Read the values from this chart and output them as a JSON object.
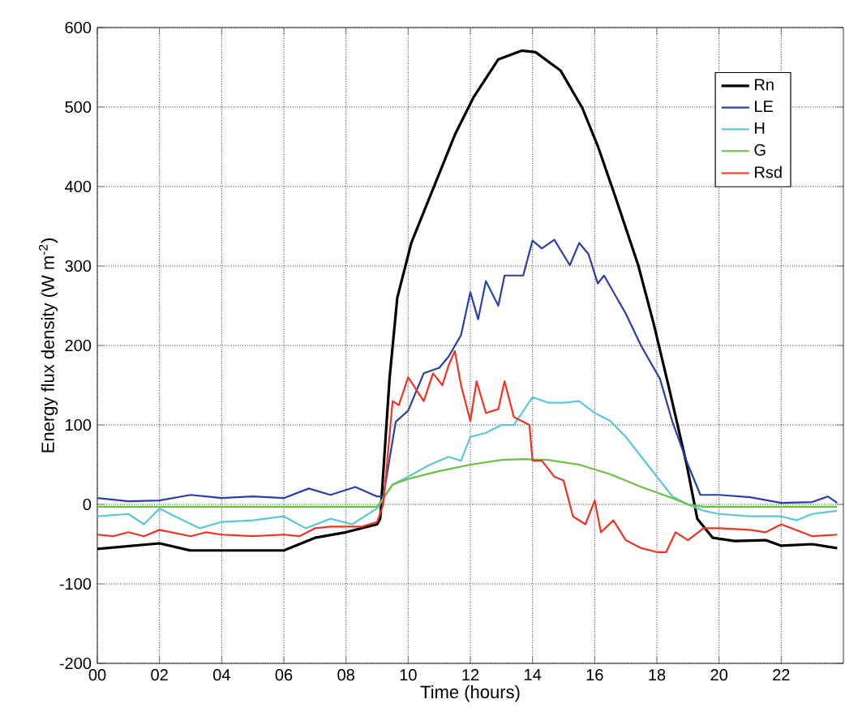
{
  "chart_data": {
    "type": "line",
    "xlabel": "Time (hours)",
    "ylabel": "Energy flux density (W m$^{-2}$)",
    "xlim": [
      0,
      24
    ],
    "ylim": [
      -200,
      600
    ],
    "xticks": [
      {
        "value": 0,
        "label": "00"
      },
      {
        "value": 2,
        "label": "02"
      },
      {
        "value": 4,
        "label": "04"
      },
      {
        "value": 6,
        "label": "06"
      },
      {
        "value": 8,
        "label": "08"
      },
      10,
      12,
      14,
      16,
      18,
      20,
      22
    ],
    "yticks": [
      -200,
      -100,
      0,
      100,
      200,
      300,
      400,
      500,
      600
    ],
    "grid": true,
    "legend": "top right",
    "line_style": "solid",
    "marker": "none",
    "series": [
      {
        "name": "Rn",
        "color": "#000000",
        "x": [
          0,
          2,
          3,
          6,
          7,
          8,
          9,
          9.1,
          9.4,
          9.65,
          10.1,
          10.8,
          11.5,
          12.1,
          12.9,
          13.65,
          14.1,
          14.9,
          15.6,
          16.1,
          16.7,
          17.4,
          17.9,
          18.4,
          18.96,
          19.3,
          19.8,
          20.5,
          21.5,
          22,
          23,
          23.8
        ],
        "values": [
          -56,
          -49,
          -58,
          -58,
          -42,
          -35,
          -25,
          -18,
          158,
          260,
          329,
          397,
          465,
          512,
          560,
          571,
          569,
          546,
          499,
          451,
          383,
          301,
          227,
          145,
          50,
          -18,
          -42,
          -46,
          -45,
          -52,
          -50,
          -55
        ]
      },
      {
        "name": "LE",
        "color": "#2b3fa8",
        "x": [
          0,
          1,
          2,
          3,
          4,
          5,
          6,
          6.8,
          7.5,
          8.3,
          9,
          9.2,
          9.6,
          10,
          10.5,
          11,
          11.3,
          11.7,
          12,
          12.25,
          12.5,
          12.9,
          13.1,
          13.7,
          14,
          14.3,
          14.7,
          15.2,
          15.5,
          15.8,
          16.1,
          16.3,
          17,
          17.5,
          18.1,
          18.5,
          19,
          19.4,
          20,
          21,
          22,
          23,
          23.5,
          23.8
        ],
        "values": [
          8,
          4,
          5,
          12,
          8,
          10,
          8,
          20,
          12,
          22,
          10,
          10,
          104,
          118,
          165,
          172,
          186,
          213,
          267,
          233,
          281,
          250,
          288,
          288,
          332,
          322,
          333,
          301,
          329,
          315,
          278,
          288,
          240,
          199,
          158,
          104,
          50,
          12,
          12,
          9,
          2,
          3,
          10,
          2
        ]
      },
      {
        "name": "H",
        "color": "#5bc8d8",
        "x": [
          0,
          1,
          1.5,
          2,
          2.5,
          3.3,
          4,
          5,
          6,
          6.7,
          7.5,
          8.2,
          9,
          9.5,
          10,
          10.7,
          11.3,
          11.7,
          12,
          12.5,
          13,
          13.4,
          14,
          14.5,
          15,
          15.5,
          16,
          16.5,
          17,
          17.5,
          18,
          18.5,
          19,
          19.5,
          20,
          21,
          22,
          22.5,
          23,
          23.8
        ],
        "values": [
          -15,
          -12,
          -25,
          -5,
          -15,
          -30,
          -22,
          -20,
          -15,
          -30,
          -18,
          -25,
          -5,
          25,
          35,
          50,
          60,
          55,
          85,
          90,
          100,
          100,
          135,
          128,
          128,
          130,
          115,
          105,
          85,
          60,
          35,
          10,
          0,
          -8,
          -12,
          -15,
          -15,
          -20,
          -12,
          -8
        ]
      },
      {
        "name": "G",
        "color": "#6cc040",
        "x": [
          0,
          9,
          9.5,
          10,
          11,
          12,
          13,
          13.7,
          14.5,
          15.5,
          16.5,
          17.5,
          18.5,
          19,
          19.5,
          23.8
        ],
        "values": [
          -3,
          -3,
          25,
          32,
          42,
          50,
          56,
          57,
          56,
          50,
          38,
          22,
          8,
          0,
          -3,
          -3
        ]
      },
      {
        "name": "Rsd",
        "color": "#ee3524",
        "x": [
          0,
          0.5,
          1,
          1.5,
          2,
          3,
          3.5,
          4,
          5,
          6,
          6.5,
          7,
          7.5,
          8.5,
          9,
          9.2,
          9.5,
          9.7,
          10,
          10.5,
          10.8,
          11.1,
          11.3,
          11.5,
          11.7,
          12,
          12.2,
          12.5,
          12.9,
          13.1,
          13.4,
          13.9,
          14,
          14.3,
          14.7,
          15,
          15.3,
          15.7,
          16,
          16.2,
          16.6,
          17,
          17.5,
          18,
          18.3,
          18.6,
          19,
          19.5,
          20,
          21,
          21.5,
          22,
          23,
          23.8
        ],
        "values": [
          -38,
          -40,
          -35,
          -40,
          -32,
          -40,
          -35,
          -38,
          -40,
          -38,
          -40,
          -30,
          -28,
          -28,
          -22,
          0,
          130,
          125,
          160,
          130,
          165,
          150,
          175,
          193,
          150,
          105,
          155,
          115,
          120,
          155,
          110,
          100,
          55,
          55,
          35,
          30,
          -15,
          -25,
          5,
          -35,
          -20,
          -45,
          -55,
          -60,
          -60,
          -35,
          -45,
          -30,
          -30,
          -32,
          -35,
          -25,
          -40,
          -38
        ]
      }
    ]
  }
}
